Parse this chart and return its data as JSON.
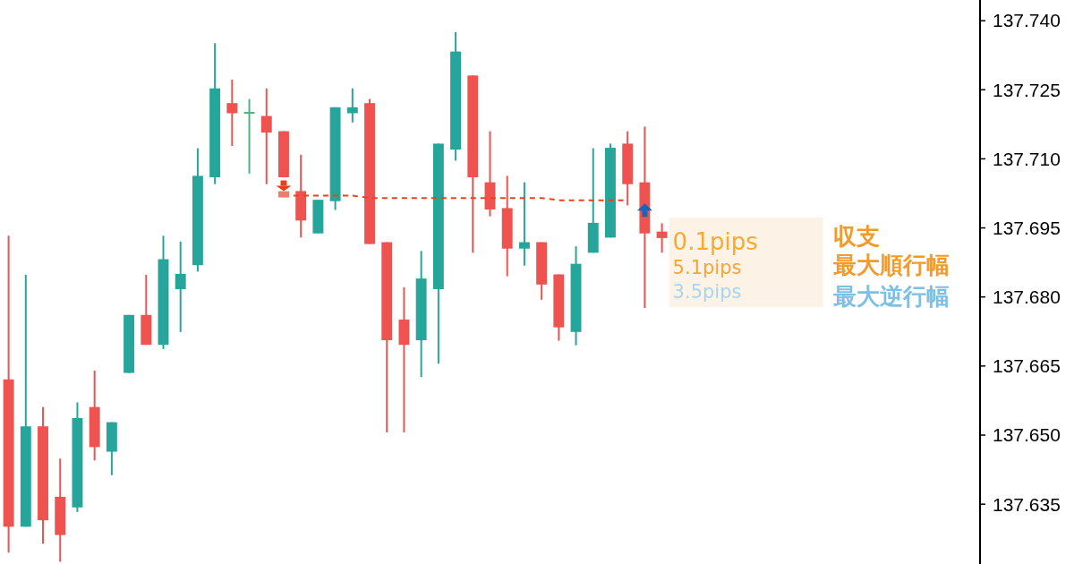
{
  "chart_data": {
    "type": "candlestick",
    "tick_labels": "y",
    "categories": [
      null,
      null,
      null,
      null,
      null,
      null,
      null,
      null,
      null,
      null,
      null,
      null,
      null,
      null,
      null,
      null,
      null,
      null,
      null,
      null,
      null,
      null,
      null,
      null,
      null,
      null,
      null,
      null,
      null,
      null,
      null,
      null,
      null,
      null,
      null,
      null,
      null,
      null,
      null,
      null,
      null,
      null,
      null,
      null,
      null,
      null,
      null,
      null,
      null,
      null,
      null,
      null,
      null,
      null,
      null,
      null,
      null
    ],
    "ohlc": [
      [
        137.6621,
        137.6933,
        137.6245,
        137.6301
      ],
      [
        137.6301,
        137.6848,
        137.6301,
        137.6519
      ],
      [
        137.6519,
        137.6561,
        137.6264,
        137.6315
      ],
      [
        137.6366,
        137.6449,
        137.6225,
        137.6283
      ],
      [
        137.6343,
        137.6571,
        137.6333,
        137.6537
      ],
      [
        137.6561,
        137.664,
        137.6445,
        137.6474
      ],
      [
        137.6464,
        137.6528,
        137.6413,
        137.6528
      ],
      [
        137.6635,
        137.6761,
        137.6635,
        137.6761
      ],
      [
        137.6761,
        137.6848,
        137.6696,
        137.6696
      ],
      [
        137.6696,
        137.6933,
        137.6687,
        137.6882
      ],
      [
        137.6817,
        137.692,
        137.6724,
        137.685
      ],
      [
        137.6869,
        137.7123,
        137.6855,
        137.7063
      ],
      [
        137.706,
        137.7351,
        137.7045,
        137.7253
      ],
      [
        137.7221,
        137.7272,
        137.7128,
        137.7199
      ],
      [
        137.72,
        137.723,
        137.7068,
        137.72
      ],
      [
        137.7193,
        137.7253,
        137.7045,
        137.7157
      ],
      [
        137.716,
        137.716,
        137.706,
        137.706
      ],
      [
        137.703,
        137.7109,
        137.6929,
        137.6966
      ],
      [
        137.6938,
        137.7011,
        137.6938,
        137.7011
      ],
      [
        137.7008,
        137.7212,
        137.6989,
        137.7212
      ],
      [
        137.7199,
        137.7253,
        137.7179,
        137.7212
      ],
      [
        137.7221,
        137.723,
        137.6915,
        137.6915
      ],
      [
        137.6919,
        137.6919,
        137.6506,
        137.6706
      ],
      [
        137.6751,
        137.6821,
        137.6506,
        137.6696
      ],
      [
        137.6706,
        137.69,
        137.6626,
        137.684
      ],
      [
        137.6817,
        137.7133,
        137.6655,
        137.7133
      ],
      [
        137.712,
        137.7375,
        137.7096,
        137.7333
      ],
      [
        137.7281,
        137.7281,
        137.6896,
        137.706
      ],
      [
        137.7049,
        137.716,
        137.6975,
        137.699
      ],
      [
        137.6993,
        137.7063,
        137.6845,
        137.6905
      ],
      [
        137.6905,
        137.7049,
        137.6868,
        137.6919
      ],
      [
        137.6919,
        137.6919,
        137.6794,
        137.6827
      ],
      [
        137.6849,
        137.6849,
        137.6705,
        137.6734
      ],
      [
        137.6724,
        137.691,
        137.6695,
        137.6872
      ],
      [
        137.6896,
        137.7123,
        137.6896,
        137.6961
      ],
      [
        137.6929,
        137.7133,
        137.6929,
        137.7124
      ],
      [
        137.7133,
        137.716,
        137.6999,
        137.7045
      ],
      [
        137.7049,
        137.717,
        137.6776,
        137.6938
      ],
      [
        137.6942,
        137.696,
        137.6896,
        137.6928
      ],
      null,
      null,
      null,
      null,
      null,
      null,
      null,
      null,
      null,
      null,
      null,
      null,
      null,
      null,
      null,
      null,
      null,
      null
    ],
    "colors": [
      "#ef5350",
      "#26a69a",
      "#ef5350",
      "#ef5350",
      "#26a69a",
      "#ef5350",
      "#26a69a",
      "#26a69a",
      "#ef5350",
      "#26a69a",
      "#26a69a",
      "#26a69a",
      "#26a69a",
      "#ef5350",
      "#4cb582",
      "#ef5350",
      "#ef5350",
      "#ef5350",
      "#26a69a",
      "#26a69a",
      "#26a69a",
      "#ef5350",
      "#ef5350",
      "#ef5350",
      "#26a69a",
      "#26a69a",
      "#26a69a",
      "#ef5350",
      "#ef5350",
      "#ef5350",
      "#26a69a",
      "#ef5350",
      "#ef5350",
      "#26a69a",
      "#26a69a",
      "#26a69a",
      "#ef5350",
      "#ef5350",
      "#ef5350",
      null,
      null,
      null,
      null,
      null,
      null,
      null,
      null,
      null,
      null,
      null,
      null,
      null,
      null,
      null,
      null,
      null,
      null
    ],
    "series": [
      {
        "type": "line",
        "color": "#e8431f",
        "line_style": "dashed",
        "values": [
          null,
          null,
          null,
          null,
          null,
          null,
          null,
          null,
          null,
          null,
          null,
          null,
          null,
          null,
          null,
          null,
          137.702,
          137.702,
          137.702,
          137.702,
          137.702,
          137.7015,
          137.7015,
          137.7015,
          137.7015,
          137.7015,
          137.7015,
          137.7015,
          137.7015,
          137.7015,
          137.7015,
          137.7015,
          137.701,
          137.701,
          137.701,
          137.701,
          137.701,
          null,
          null,
          null,
          null,
          null,
          null,
          null,
          null,
          null,
          null,
          null,
          null,
          null,
          null,
          null,
          null,
          null,
          null,
          null,
          null
        ]
      }
    ],
    "ylim": [
      137.6222,
      137.7443
    ],
    "yticks": [
      {
        "value": 137.74,
        "label": "137.740"
      },
      {
        "value": 137.725,
        "label": "137.725"
      },
      {
        "value": 137.71,
        "label": "137.710"
      },
      {
        "value": 137.695,
        "label": "137.695"
      },
      {
        "value": 137.68,
        "label": "137.680"
      },
      {
        "value": 137.665,
        "label": "137.665"
      },
      {
        "value": 137.65,
        "label": "137.650"
      },
      {
        "value": 137.635,
        "label": "137.635"
      }
    ],
    "annotations": [
      "0.1pips",
      "収支",
      "5.1pips",
      "最大順行幅",
      "3.5pips",
      "最大逆行幅"
    ]
  }
}
